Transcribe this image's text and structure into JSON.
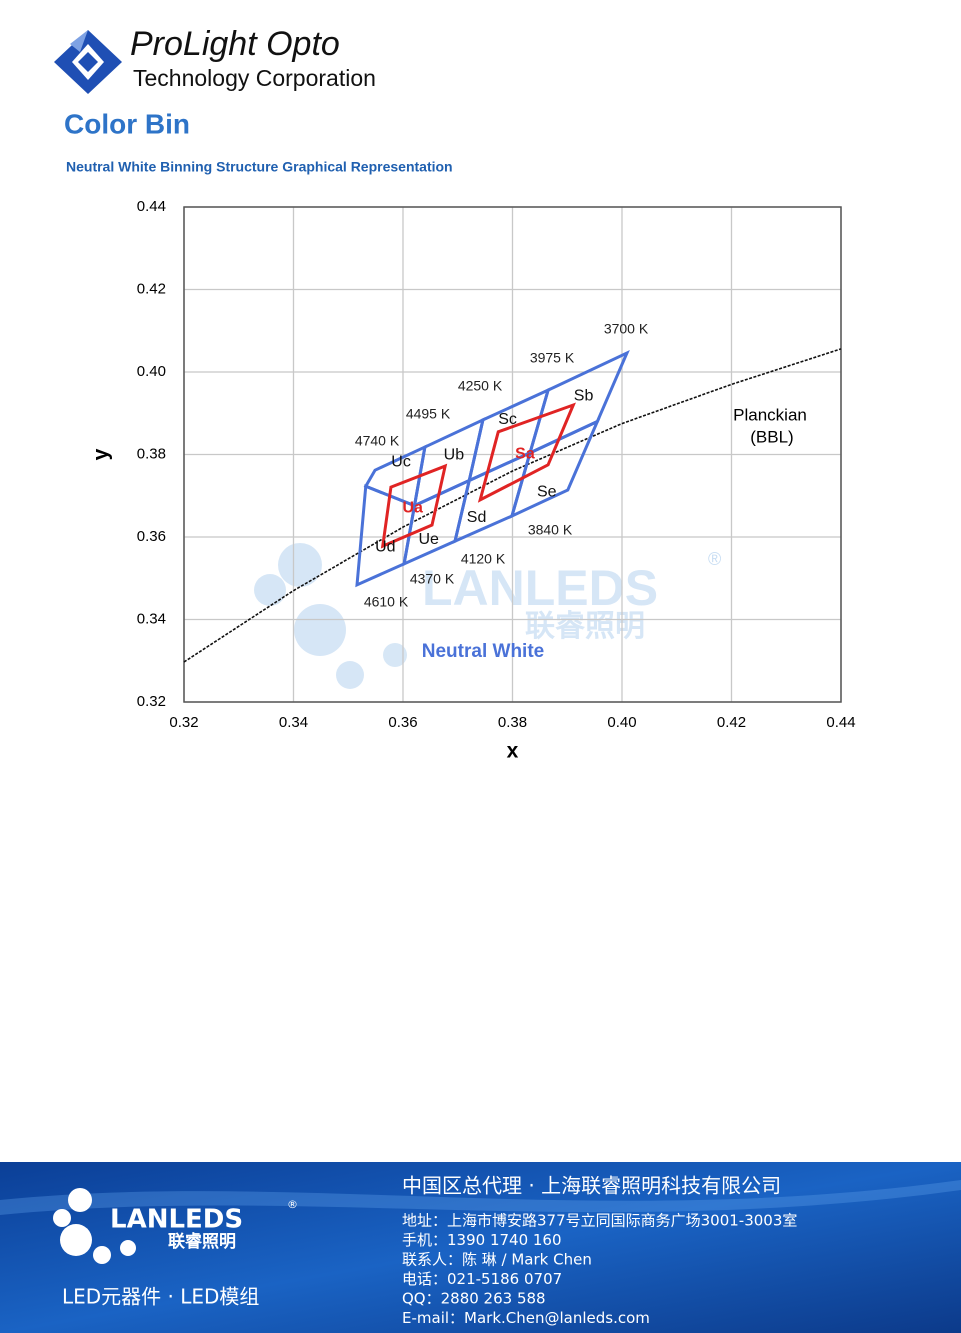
{
  "header": {
    "brand": "ProLight Opto",
    "company": "Technology Corporation"
  },
  "section_title": "Color Bin",
  "subtitle": "Neutral White Binning Structure Graphical Representation",
  "chart_data": {
    "type": "cie-bins",
    "xlabel": "x",
    "ylabel": "y",
    "xlim": [
      0.32,
      0.44
    ],
    "ylim": [
      0.32,
      0.44
    ],
    "xticks": [
      0.32,
      0.34,
      0.36,
      0.38,
      {
        "value": 0.4,
        "label": "0.40"
      },
      0.42,
      0.44
    ],
    "yticks": [
      0.32,
      0.34,
      0.36,
      0.38,
      {
        "value": 0.4,
        "label": "0.40"
      },
      0.42,
      0.44
    ],
    "grid": true,
    "planckian": {
      "label": "Planckian",
      "label_sub": "(BBL)",
      "color": "#111111",
      "x": [
        0.32,
        0.34,
        0.36,
        0.38,
        0.4,
        0.42,
        0.44
      ],
      "y": [
        0.3297,
        0.347,
        0.3624,
        0.376,
        0.3875,
        0.397,
        0.4056
      ]
    },
    "bins": [
      {
        "name": "Uc",
        "color": "#4a72d8",
        "x": [
          0.3549,
          0.364,
          0.3621,
          0.3532
        ],
        "y": [
          0.3762,
          0.3818,
          0.3676,
          0.3723
        ]
      },
      {
        "name": "Ub",
        "color": "#4a72d8",
        "x": [
          0.364,
          0.3746,
          0.3721,
          0.3621
        ],
        "y": [
          0.3818,
          0.3884,
          0.3737,
          0.3676
        ]
      },
      {
        "name": "Sc",
        "color": "#4a72d8",
        "x": [
          0.3746,
          0.3865,
          0.3832,
          0.3721
        ],
        "y": [
          0.3884,
          0.3956,
          0.3804,
          0.3737
        ]
      },
      {
        "name": "Sb",
        "color": "#4a72d8",
        "x": [
          0.3865,
          0.4009,
          0.3955,
          0.3832
        ],
        "y": [
          0.3956,
          0.4046,
          0.388,
          0.3804
        ]
      },
      {
        "name": "Ud",
        "color": "#4a72d8",
        "x": [
          0.3532,
          0.3621,
          0.3602,
          0.3516
        ],
        "y": [
          0.3723,
          0.3676,
          0.3535,
          0.3484
        ]
      },
      {
        "name": "Ue",
        "color": "#4a72d8",
        "x": [
          0.3621,
          0.3721,
          0.3695,
          0.3602
        ],
        "y": [
          0.3676,
          0.3737,
          0.359,
          0.3535
        ]
      },
      {
        "name": "Sd",
        "color": "#4a72d8",
        "x": [
          0.3721,
          0.3832,
          0.3799,
          0.3695
        ],
        "y": [
          0.3737,
          0.3804,
          0.3651,
          0.359
        ]
      },
      {
        "name": "Se",
        "color": "#4a72d8",
        "x": [
          0.3832,
          0.3955,
          0.3901,
          0.3799
        ],
        "y": [
          0.3804,
          0.388,
          0.3714,
          0.3651
        ]
      },
      {
        "name": "Ua",
        "color": "#e02424",
        "x": [
          0.3578,
          0.3677,
          0.3653,
          0.3563
        ],
        "y": [
          0.3721,
          0.3772,
          0.3629,
          0.3578
        ]
      },
      {
        "name": "Sa",
        "color": "#e02424",
        "x": [
          0.3774,
          0.3911,
          0.3865,
          0.3741
        ],
        "y": [
          0.3855,
          0.392,
          0.3775,
          0.369
        ]
      }
    ],
    "cct_top": [
      "4740 K",
      "4495 K",
      "4250 K",
      "3975 K",
      "3700 K"
    ],
    "cct_bottom": [
      "4610 K",
      "4370 K",
      "4120 K",
      "3840 K"
    ],
    "region_label": "Neutral White"
  },
  "watermark": {
    "brand": "LANLEDS",
    "chinese": "联睿照明",
    "mark": "®"
  },
  "footer": {
    "brand": "LANLEDS",
    "mark": "®",
    "chinese": "联睿照明",
    "tagline": "LED元器件 · LED模组",
    "heading": "中国区总代理 · 上海联睿照明科技有限公司",
    "lines": [
      "地址：上海市博安路377号立同国际商务广场3001-3003室",
      "手机：1390 1740 160",
      "联系人：陈 琳 / Mark Chen",
      "电话：021-5186 0707",
      "QQ：2880 263 588",
      "E-mail：Mark.Chen@lanleds.com"
    ]
  }
}
